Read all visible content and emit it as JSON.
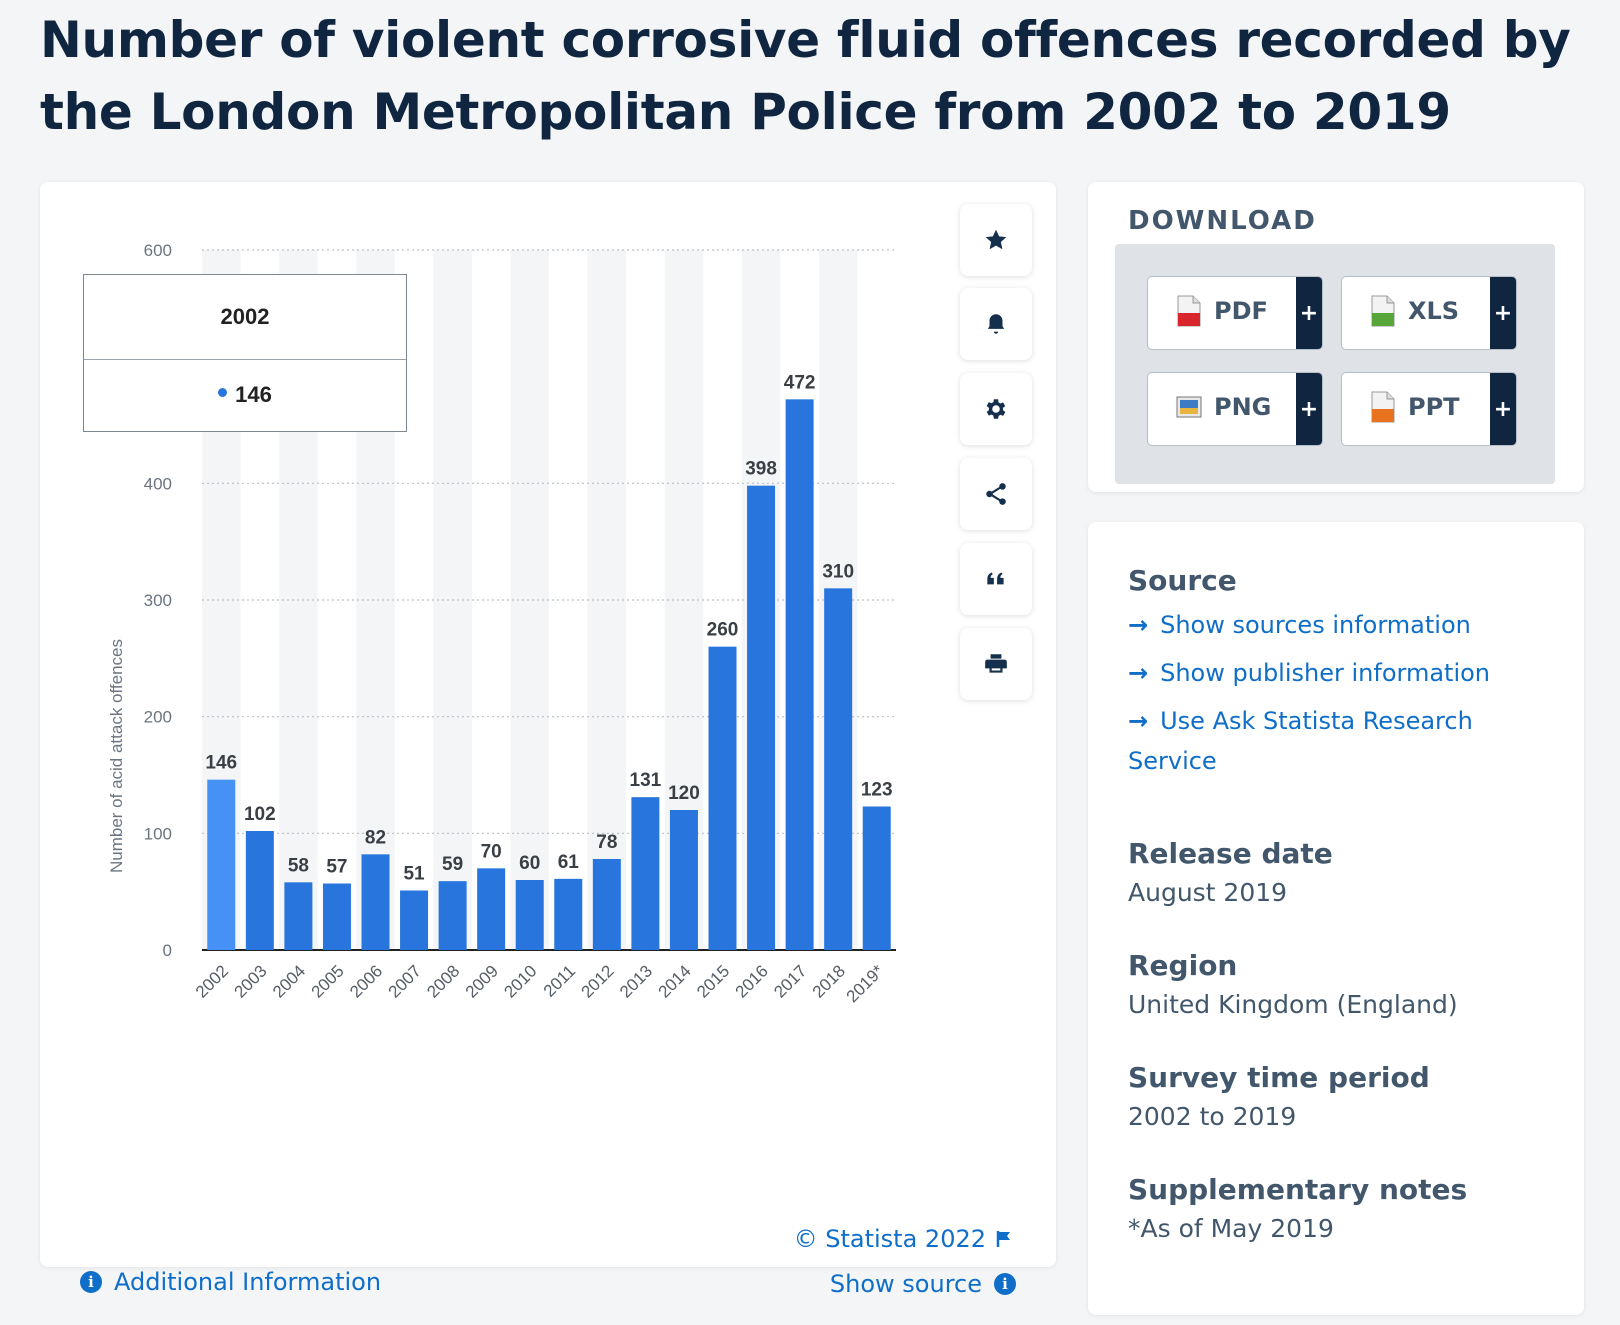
{
  "page": {
    "title": "Number of violent corrosive fluid offences recorded by the London Metropolitan Police from 2002 to 2019"
  },
  "chart_data": {
    "type": "bar",
    "title": "",
    "xlabel": "",
    "ylabel": "Number of acid attack offences",
    "categories": [
      "2002",
      "2003",
      "2004",
      "2005",
      "2006",
      "2007",
      "2008",
      "2009",
      "2010",
      "2011",
      "2012",
      "2013",
      "2014",
      "2015",
      "2016",
      "2017",
      "2018",
      "2019*"
    ],
    "values": [
      146,
      102,
      58,
      57,
      82,
      51,
      59,
      70,
      60,
      61,
      78,
      131,
      120,
      260,
      398,
      472,
      310,
      123
    ],
    "ylim": [
      0,
      600
    ],
    "y_ticks": [
      0,
      100,
      200,
      300,
      400,
      600
    ],
    "grid": true,
    "bar_color": "#2876dd",
    "highlight_color": "#4691f5",
    "highlight_index": 0
  },
  "tooltip": {
    "category": "2002",
    "value": "146"
  },
  "side_tools": [
    "star-icon",
    "bell-icon",
    "gear-icon",
    "share-icon",
    "quote-icon",
    "print-icon"
  ],
  "footer": {
    "copyright": "© Statista 2022",
    "show_source": "Show source",
    "additional_info": "Additional Information"
  },
  "download": {
    "heading": "DOWNLOAD",
    "buttons": [
      {
        "label": "PDF",
        "icon": "pdf-file-icon",
        "color": "#d9262c"
      },
      {
        "label": "XLS",
        "icon": "xls-file-icon",
        "color": "#58a53a"
      },
      {
        "label": "PNG",
        "icon": "png-file-icon",
        "color": "#3d7bc4"
      },
      {
        "label": "PPT",
        "icon": "ppt-file-icon",
        "color": "#e8731f"
      }
    ],
    "plus": "+"
  },
  "meta": {
    "source_label": "Source",
    "source_links": [
      "Show sources information",
      "Show publisher information",
      "Use Ask Statista Research Service"
    ],
    "release_label": "Release date",
    "release_value": "August 2019",
    "region_label": "Region",
    "region_value": "United Kingdom (England)",
    "survey_label": "Survey time period",
    "survey_value": "2002 to 2019",
    "notes_label": "Supplementary notes",
    "notes_value": "*As of May 2019"
  }
}
